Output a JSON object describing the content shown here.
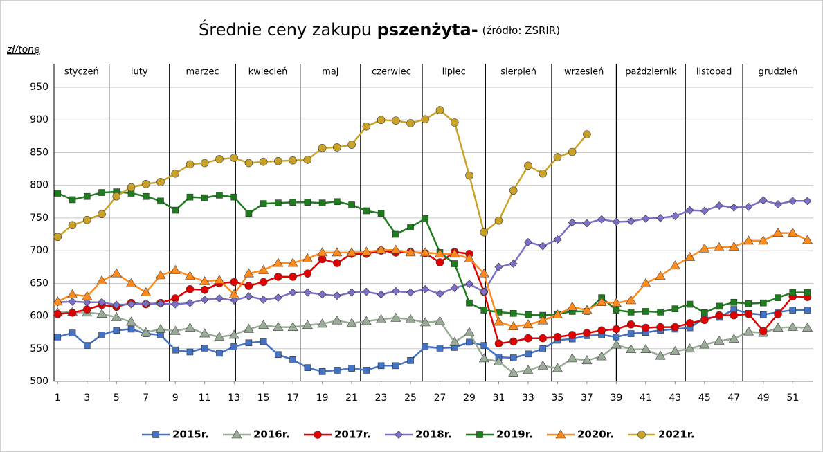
{
  "chart_data": {
    "type": "line",
    "title": "Średnie ceny zakupu ",
    "title_bold": "pszenżyta-",
    "title_source": "(źródło: ZSRIR)",
    "y_label": "zł/tonę",
    "months": [
      "styczeń",
      "luty",
      "marzec",
      "kwiecień",
      "maj",
      "czerwiec",
      "lipiec",
      "sierpień",
      "wrzesień",
      "październik",
      "listopad",
      "grudzień"
    ],
    "month_edges": [
      4.5,
      8.6,
      13.1,
      17.5,
      21.6,
      25.8,
      30.1,
      34.6,
      39,
      43.7,
      47.6
    ],
    "x": [
      1,
      2,
      3,
      4,
      5,
      6,
      7,
      8,
      9,
      10,
      11,
      12,
      13,
      14,
      15,
      16,
      17,
      18,
      19,
      20,
      21,
      22,
      23,
      24,
      25,
      26,
      27,
      28,
      29,
      30,
      31,
      32,
      33,
      34,
      35,
      36,
      37,
      38,
      39,
      40,
      41,
      42,
      43,
      44,
      45,
      46,
      47,
      48,
      49,
      50,
      51,
      52
    ],
    "xlim": [
      0.75,
      52.4
    ],
    "xticks": [
      1,
      3,
      5,
      7,
      9,
      11,
      13,
      15,
      17,
      19,
      21,
      23,
      25,
      27,
      29,
      31,
      33,
      35,
      37,
      39,
      41,
      43,
      45,
      47,
      49,
      51
    ],
    "ylim": [
      500,
      950
    ],
    "yticks": [
      500,
      550,
      600,
      650,
      700,
      750,
      800,
      850,
      900,
      950
    ],
    "grid": true,
    "series": [
      {
        "name": "2015r.",
        "color": "#4472c4",
        "marker": "square",
        "values": [
          568,
          574,
          555,
          571,
          578,
          580,
          573,
          571,
          548,
          545,
          551,
          543,
          553,
          559,
          561,
          541,
          533,
          521,
          515,
          517,
          520,
          517,
          524,
          524,
          532,
          553,
          551,
          552,
          560,
          555,
          537,
          536,
          542,
          550,
          563,
          565,
          570,
          571,
          568,
          573,
          575,
          578,
          580,
          582,
          597,
          598,
          610,
          604,
          602,
          606,
          609,
          609
        ]
      },
      {
        "name": "2016r.",
        "color": "#9aab98",
        "marker": "triangle",
        "values": [
          605,
          606,
          605,
          603,
          598,
          591,
          575,
          580,
          577,
          582,
          573,
          568,
          571,
          580,
          586,
          583,
          583,
          586,
          588,
          593,
          589,
          592,
          595,
          597,
          595,
          590,
          592,
          560,
          575,
          535,
          530,
          513,
          517,
          524,
          520,
          535,
          532,
          538,
          556,
          549,
          549,
          539,
          546,
          550,
          556,
          562,
          565,
          576,
          574,
          582,
          583,
          582
        ]
      },
      {
        "name": "2017r.",
        "color": "#e00000",
        "marker": "circle",
        "values": [
          603,
          605,
          610,
          617,
          614,
          620,
          618,
          620,
          627,
          641,
          640,
          650,
          652,
          646,
          652,
          660,
          660,
          665,
          687,
          681,
          695,
          695,
          700,
          697,
          698,
          696,
          682,
          698,
          695,
          637,
          558,
          561,
          566,
          566,
          568,
          571,
          574,
          578,
          580,
          587,
          582,
          583,
          583,
          589,
          594,
          601,
          601,
          603,
          577,
          603,
          630,
          629
        ]
      },
      {
        "name": "2018r.",
        "color": "#7b70c8",
        "marker": "diamond",
        "values": [
          621,
          622,
          621,
          621,
          617,
          618,
          619,
          619,
          618,
          620,
          625,
          627,
          624,
          630,
          625,
          628,
          636,
          636,
          633,
          631,
          636,
          637,
          633,
          638,
          636,
          641,
          634,
          643,
          649,
          637,
          675,
          680,
          713,
          707,
          717,
          743,
          742,
          748,
          744,
          745,
          749,
          750,
          753,
          762,
          761,
          769,
          766,
          767,
          777,
          771,
          776,
          776
        ]
      },
      {
        "name": "2019r.",
        "color": "#1e7b1e",
        "marker": "square",
        "values": [
          788,
          778,
          783,
          789,
          790,
          788,
          783,
          776,
          762,
          782,
          781,
          785,
          782,
          757,
          772,
          773,
          774,
          774,
          773,
          775,
          770,
          761,
          757,
          725,
          736,
          749,
          697,
          680,
          620,
          609,
          606,
          604,
          602,
          601,
          603,
          607,
          607,
          628,
          609,
          606,
          607,
          606,
          611,
          618,
          605,
          615,
          621,
          619,
          620,
          628,
          636,
          636
        ]
      },
      {
        "name": "2020r.",
        "color": "#ff8a1c",
        "marker": "triangle",
        "values": [
          622,
          633,
          630,
          654,
          665,
          650,
          636,
          662,
          670,
          661,
          653,
          655,
          633,
          665,
          670,
          681,
          681,
          688,
          697,
          697,
          697,
          698,
          701,
          701,
          697,
          697,
          695,
          695,
          688,
          665,
          591,
          584,
          587,
          593,
          602,
          614,
          609,
          621,
          620,
          624,
          650,
          661,
          677,
          690,
          703,
          705,
          706,
          715,
          715,
          727,
          727,
          716
        ]
      },
      {
        "name": "2021r.",
        "color": "#c9a227",
        "marker": "circle",
        "values": [
          721,
          739,
          747,
          756,
          783,
          797,
          802,
          805,
          818,
          832,
          834,
          840,
          842,
          834,
          836,
          837,
          838,
          839,
          857,
          858,
          862,
          890,
          900,
          899,
          895,
          901,
          915,
          896,
          815,
          728,
          746,
          792,
          830,
          818,
          843,
          851,
          878,
          null,
          null,
          null,
          null,
          null,
          null,
          null,
          null,
          null,
          null,
          null,
          null,
          null,
          null,
          null
        ]
      }
    ]
  }
}
